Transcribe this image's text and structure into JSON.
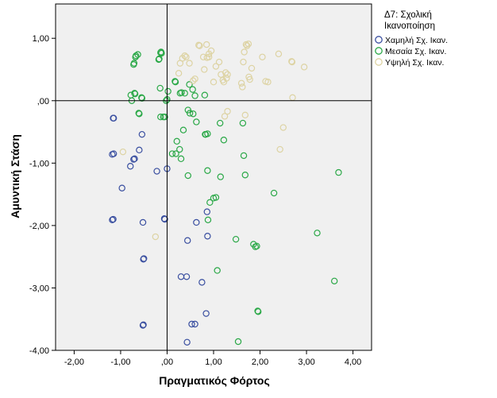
{
  "chart_data": {
    "type": "scatter",
    "xlabel": "Πραγματικός Φόρτος",
    "ylabel": "Αμυντική Στάση",
    "xlim": [
      -2.4,
      4.4
    ],
    "ylim": [
      -4.0,
      1.55
    ],
    "xticks": [
      -2,
      -1,
      0,
      1,
      2,
      3,
      4
    ],
    "yticks": [
      1,
      0,
      -1,
      -2,
      -3,
      -4
    ],
    "xtick_labels": [
      "-2,00",
      "-1,00",
      ",00",
      "1,00",
      "2,00",
      "3,00",
      "4,00"
    ],
    "ytick_labels": [
      "1,00",
      ",00",
      "-1,00",
      "-2,00",
      "-3,00",
      "-4,00"
    ],
    "reference_lines": {
      "x": 0,
      "y": 0
    },
    "grid": false,
    "legend": {
      "position": "right",
      "title": [
        "Δ7: Σχολική",
        "Ικανοποίηση"
      ]
    },
    "series": [
      {
        "name": "Χαμηλή Σχ. Ικαν.",
        "color": "#3a4fa0",
        "points": [
          [
            -1.16,
            -0.28
          ],
          [
            -1.15,
            -0.28
          ],
          [
            -1.18,
            -0.86
          ],
          [
            -1.15,
            -0.85
          ],
          [
            -1.18,
            -1.91
          ],
          [
            -1.16,
            -1.9
          ],
          [
            -0.97,
            -1.4
          ],
          [
            -0.79,
            -1.05
          ],
          [
            -0.72,
            -0.94
          ],
          [
            -0.7,
            -0.93
          ],
          [
            -0.6,
            -0.79
          ],
          [
            -0.54,
            -0.54
          ],
          [
            -0.52,
            -1.95
          ],
          [
            -0.51,
            -2.54
          ],
          [
            -0.5,
            -2.53
          ],
          [
            -0.52,
            -3.6
          ],
          [
            -0.51,
            -3.59
          ],
          [
            -0.22,
            -1.13
          ],
          [
            -0.06,
            -1.89
          ],
          [
            -0.05,
            -1.9
          ],
          [
            0.0,
            -1.09
          ],
          [
            0.3,
            -2.82
          ],
          [
            0.42,
            -2.82
          ],
          [
            0.44,
            -2.24
          ],
          [
            0.43,
            -3.87
          ],
          [
            0.53,
            -3.58
          ],
          [
            0.6,
            -3.58
          ],
          [
            0.63,
            -1.95
          ],
          [
            0.75,
            -2.91
          ],
          [
            0.84,
            -3.41
          ],
          [
            0.86,
            -1.78
          ],
          [
            0.87,
            -2.17
          ]
        ]
      },
      {
        "name": "Μεσαία Σχ. Ικαν.",
        "color": "#2aa847",
        "points": [
          [
            -0.72,
            0.58
          ],
          [
            -0.71,
            0.6
          ],
          [
            -0.68,
            0.7
          ],
          [
            -0.67,
            0.72
          ],
          [
            -0.63,
            0.74
          ],
          [
            -0.76,
            0.0
          ],
          [
            -0.7,
            0.12
          ],
          [
            -0.69,
            0.11
          ],
          [
            -0.78,
            0.09
          ],
          [
            -0.61,
            -0.2
          ],
          [
            -0.6,
            -0.21
          ],
          [
            -0.55,
            0.05
          ],
          [
            -0.54,
            0.04
          ],
          [
            -0.18,
            0.66
          ],
          [
            -0.17,
            0.67
          ],
          [
            -0.14,
            0.77
          ],
          [
            -0.13,
            0.78
          ],
          [
            -0.12,
            0.76
          ],
          [
            -0.15,
            0.2
          ],
          [
            -0.14,
            -0.26
          ],
          [
            -0.08,
            -0.26
          ],
          [
            -0.05,
            -0.26
          ],
          [
            -0.02,
            0.0
          ],
          [
            0.0,
            0.02
          ],
          [
            0.02,
            0.15
          ],
          [
            0.17,
            0.31
          ],
          [
            0.18,
            0.3
          ],
          [
            0.28,
            0.12
          ],
          [
            0.31,
            0.13
          ],
          [
            0.38,
            0.12
          ],
          [
            0.35,
            -0.47
          ],
          [
            0.45,
            -0.15
          ],
          [
            0.48,
            0.26
          ],
          [
            0.55,
            0.18
          ],
          [
            0.56,
            -0.21
          ],
          [
            0.6,
            0.08
          ],
          [
            0.63,
            -0.34
          ],
          [
            0.21,
            -0.65
          ],
          [
            0.27,
            -0.78
          ],
          [
            0.3,
            -0.93
          ],
          [
            0.11,
            -0.85
          ],
          [
            0.19,
            -0.85
          ],
          [
            0.81,
            0.09
          ],
          [
            0.82,
            -0.54
          ],
          [
            0.87,
            -0.53
          ],
          [
            0.83,
            -0.54
          ],
          [
            0.87,
            -1.12
          ],
          [
            0.92,
            -1.63
          ],
          [
            0.88,
            -1.91
          ],
          [
            1.0,
            -1.56
          ],
          [
            1.05,
            -1.55
          ],
          [
            1.08,
            -2.72
          ],
          [
            1.14,
            -0.36
          ],
          [
            1.15,
            -1.22
          ],
          [
            1.22,
            -0.63
          ],
          [
            1.48,
            -2.22
          ],
          [
            1.53,
            -3.86
          ],
          [
            1.63,
            -0.36
          ],
          [
            1.65,
            -0.88
          ],
          [
            1.68,
            -1.19
          ],
          [
            1.86,
            -2.3
          ],
          [
            1.9,
            -2.34
          ],
          [
            1.93,
            -2.33
          ],
          [
            1.95,
            -3.37
          ],
          [
            1.96,
            -3.38
          ],
          [
            2.3,
            -1.48
          ],
          [
            3.23,
            -2.12
          ],
          [
            3.6,
            -2.89
          ],
          [
            3.69,
            -1.15
          ],
          [
            0.45,
            -1.2
          ],
          [
            0.49,
            -0.2
          ]
        ]
      },
      {
        "name": "Υψηλή Σχ. Ικαν.",
        "color": "#ddd3a3",
        "points": [
          [
            -0.95,
            -0.82
          ],
          [
            -0.25,
            -2.18
          ],
          [
            0.25,
            0.44
          ],
          [
            0.28,
            0.6
          ],
          [
            0.33,
            0.68
          ],
          [
            0.38,
            0.72
          ],
          [
            0.41,
            0.7
          ],
          [
            0.48,
            0.6
          ],
          [
            0.56,
            0.32
          ],
          [
            0.6,
            0.35
          ],
          [
            0.68,
            0.89
          ],
          [
            0.7,
            0.88
          ],
          [
            0.78,
            0.7
          ],
          [
            0.8,
            0.5
          ],
          [
            0.85,
            0.9
          ],
          [
            0.86,
            0.69
          ],
          [
            0.9,
            0.7
          ],
          [
            0.9,
            0.75
          ],
          [
            0.95,
            0.8
          ],
          [
            1.0,
            0.3
          ],
          [
            1.05,
            0.55
          ],
          [
            1.12,
            0.62
          ],
          [
            1.16,
            0.42
          ],
          [
            1.2,
            0.33
          ],
          [
            1.22,
            0.3
          ],
          [
            1.26,
            0.45
          ],
          [
            1.28,
            0.36
          ],
          [
            1.3,
            0.42
          ],
          [
            1.24,
            -0.25
          ],
          [
            1.3,
            -0.17
          ],
          [
            1.6,
            0.28
          ],
          [
            1.62,
            0.22
          ],
          [
            1.64,
            0.62
          ],
          [
            1.66,
            0.78
          ],
          [
            1.68,
            -0.23
          ],
          [
            1.7,
            0.9
          ],
          [
            1.72,
            0.88
          ],
          [
            1.75,
            0.91
          ],
          [
            1.76,
            0.38
          ],
          [
            1.78,
            0.34
          ],
          [
            1.82,
            0.52
          ],
          [
            2.05,
            0.7
          ],
          [
            2.12,
            0.31
          ],
          [
            2.17,
            0.3
          ],
          [
            2.4,
            0.75
          ],
          [
            2.43,
            -0.78
          ],
          [
            2.5,
            -0.43
          ],
          [
            2.68,
            0.63
          ],
          [
            2.69,
            0.62
          ],
          [
            2.7,
            0.05
          ],
          [
            2.95,
            0.54
          ]
        ]
      }
    ]
  }
}
